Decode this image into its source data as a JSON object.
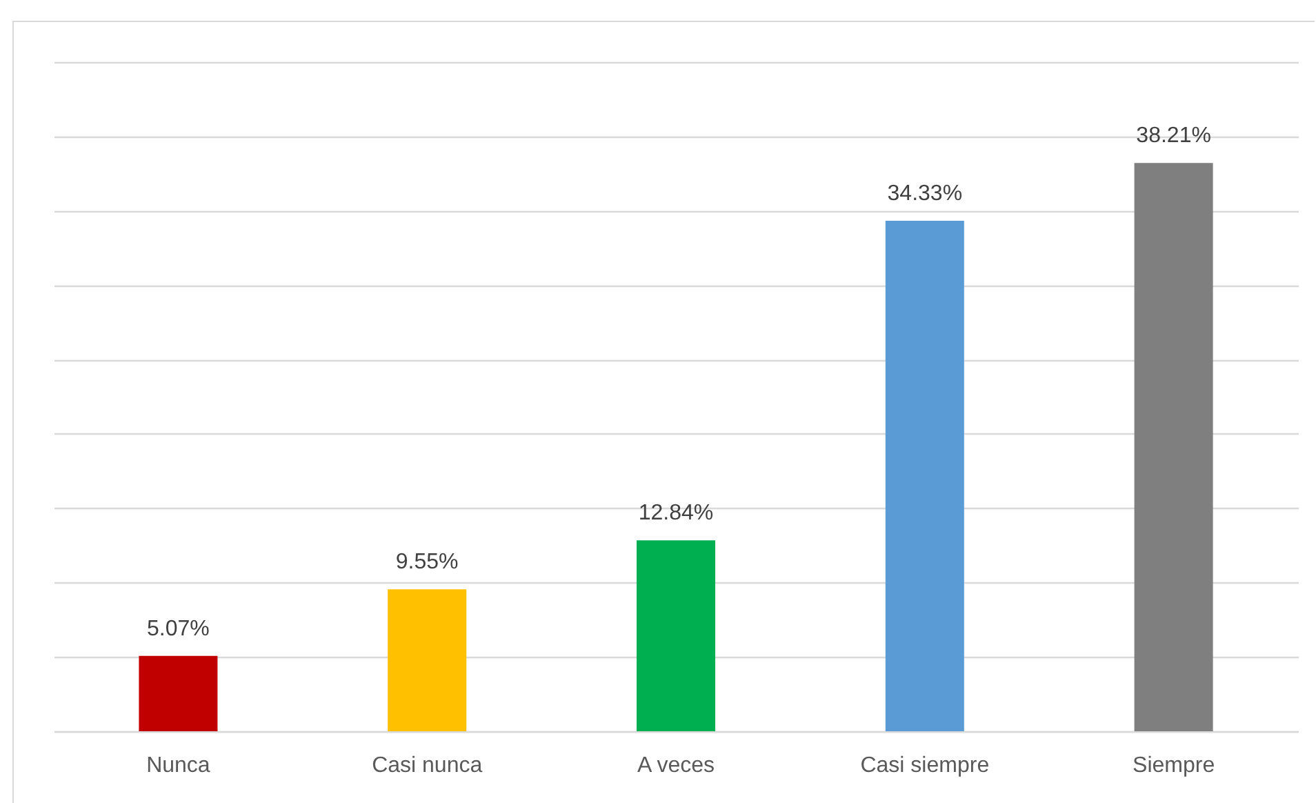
{
  "chart_data": {
    "type": "bar",
    "categories": [
      "Nunca",
      "Casi nunca",
      "A veces",
      "Casi siempre",
      "Siempre"
    ],
    "values": [
      5.07,
      9.55,
      12.84,
      34.33,
      38.21
    ],
    "colors": [
      "#c00000",
      "#ffc000",
      "#00b050",
      "#5b9bd5",
      "#7f7f7f"
    ],
    "value_labels": [
      "5.07%",
      "9.55%",
      "12.84%",
      "34.33%",
      "38.21%"
    ],
    "ylim": [
      0,
      45
    ],
    "yticks": [
      {
        "value": 0,
        "label": null
      },
      {
        "value": 5,
        "label": null
      },
      {
        "value": 10,
        "label": null
      },
      {
        "value": 15,
        "label": null
      },
      {
        "value": 20,
        "label": null
      },
      {
        "value": 25,
        "label": null
      },
      {
        "value": 30,
        "label": null
      },
      {
        "value": 35,
        "label": null
      },
      {
        "value": 40,
        "label": null
      },
      {
        "value": 45,
        "label": null
      }
    ],
    "grid": "y",
    "tick_labels": "x"
  }
}
